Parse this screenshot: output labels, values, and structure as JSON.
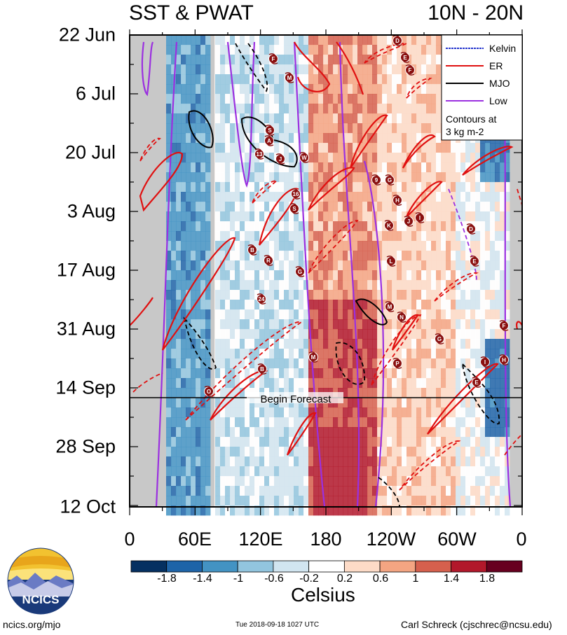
{
  "header": {
    "title": "SST & PWAT",
    "region": "10N - 20N"
  },
  "chart_data": {
    "type": "heatmap",
    "title": "SST & PWAT",
    "subtitle": "10N - 20N",
    "y_ticks": [
      "22 Jun",
      "6 Jul",
      "20 Jul",
      "3 Aug",
      "17 Aug",
      "31 Aug",
      "14 Sep",
      "28 Sep",
      "12 Oct"
    ],
    "x_ticks": [
      "0",
      "60E",
      "120E",
      "180",
      "120W",
      "60W",
      "0"
    ],
    "colorbar": {
      "label": "Celsius",
      "tick_labels": [
        "-1.8",
        "-1.4",
        "-1",
        "-0.6",
        "-0.2",
        "0.2",
        "0.6",
        "1",
        "1.4",
        "1.8"
      ],
      "colors": [
        "#053061",
        "#1e64a8",
        "#4393c3",
        "#92c5de",
        "#d1e5f0",
        "#ffffff",
        "#fddbc7",
        "#f4a582",
        "#d6604d",
        "#b2182b",
        "#67001f"
      ]
    },
    "legend": {
      "position": "top-right",
      "entries": [
        {
          "name": "Kelvin",
          "color": "#2233cc"
        },
        {
          "name": "ER",
          "color": "#e01010"
        },
        {
          "name": "MJO",
          "color": "#000000"
        },
        {
          "name": "Low",
          "color": "#9b30e0"
        }
      ],
      "note_line1": "Contours at",
      "note_line2": "3 kg m-2"
    },
    "forecast_label": "Begin Forecast",
    "storm_markers": [
      "F",
      "M",
      "D",
      "E",
      "F",
      "S",
      "A",
      "13",
      "J",
      "W",
      "9",
      "G",
      "16",
      "S",
      "H",
      "K",
      "J",
      "I",
      "D",
      "B",
      "R",
      "G",
      "L",
      "E",
      "24",
      "M",
      "N",
      "G",
      "F",
      "M",
      "P",
      "B",
      "I",
      "H",
      "E",
      "O"
    ]
  },
  "footer": {
    "org": "NCICS",
    "url": "ncics.org/mjo",
    "timestamp": "Tue 2018-09-18 1027 UTC",
    "author": "Carl Schreck (cjschrec@ncsu.edu)"
  }
}
